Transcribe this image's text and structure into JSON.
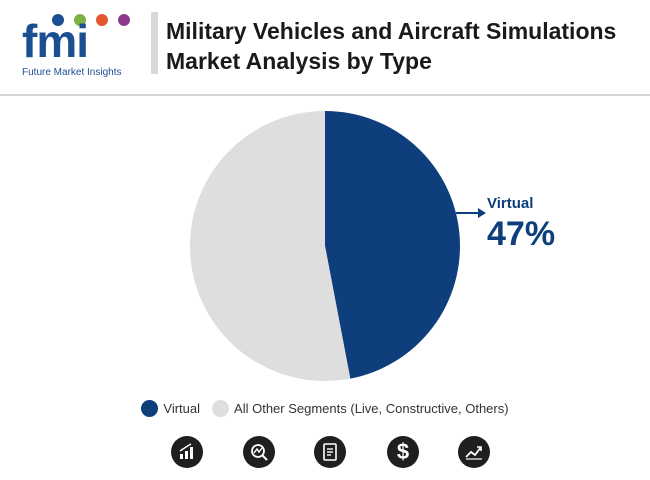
{
  "brand": {
    "logo_text": "fmi",
    "tagline": "Future Market Insights"
  },
  "title": "Military Vehicles and Aircraft Simulations Market Analysis by Type",
  "colors": {
    "virtual": "#0e3f7c",
    "other": "#dedede",
    "title": "#1a1a1a"
  },
  "chart_data": {
    "type": "pie",
    "slices": [
      {
        "label": "Virtual",
        "value": 47,
        "color": "#0e3f7c"
      },
      {
        "label": "All Other Segments (Live, Constructive, Others)",
        "value": 53,
        "color": "#dedede"
      }
    ],
    "callout": {
      "label": "Virtual",
      "value_text": "47%"
    },
    "legend": [
      "Virtual",
      "All Other Segments (Live, Constructive, Others)"
    ],
    "legend_position": "bottom"
  },
  "footer_icons": [
    "bar-chart-icon",
    "magnifier-chart-icon",
    "document-icon",
    "dollar-icon",
    "line-chart-icon"
  ],
  "footer_dollar_glyph": "$"
}
